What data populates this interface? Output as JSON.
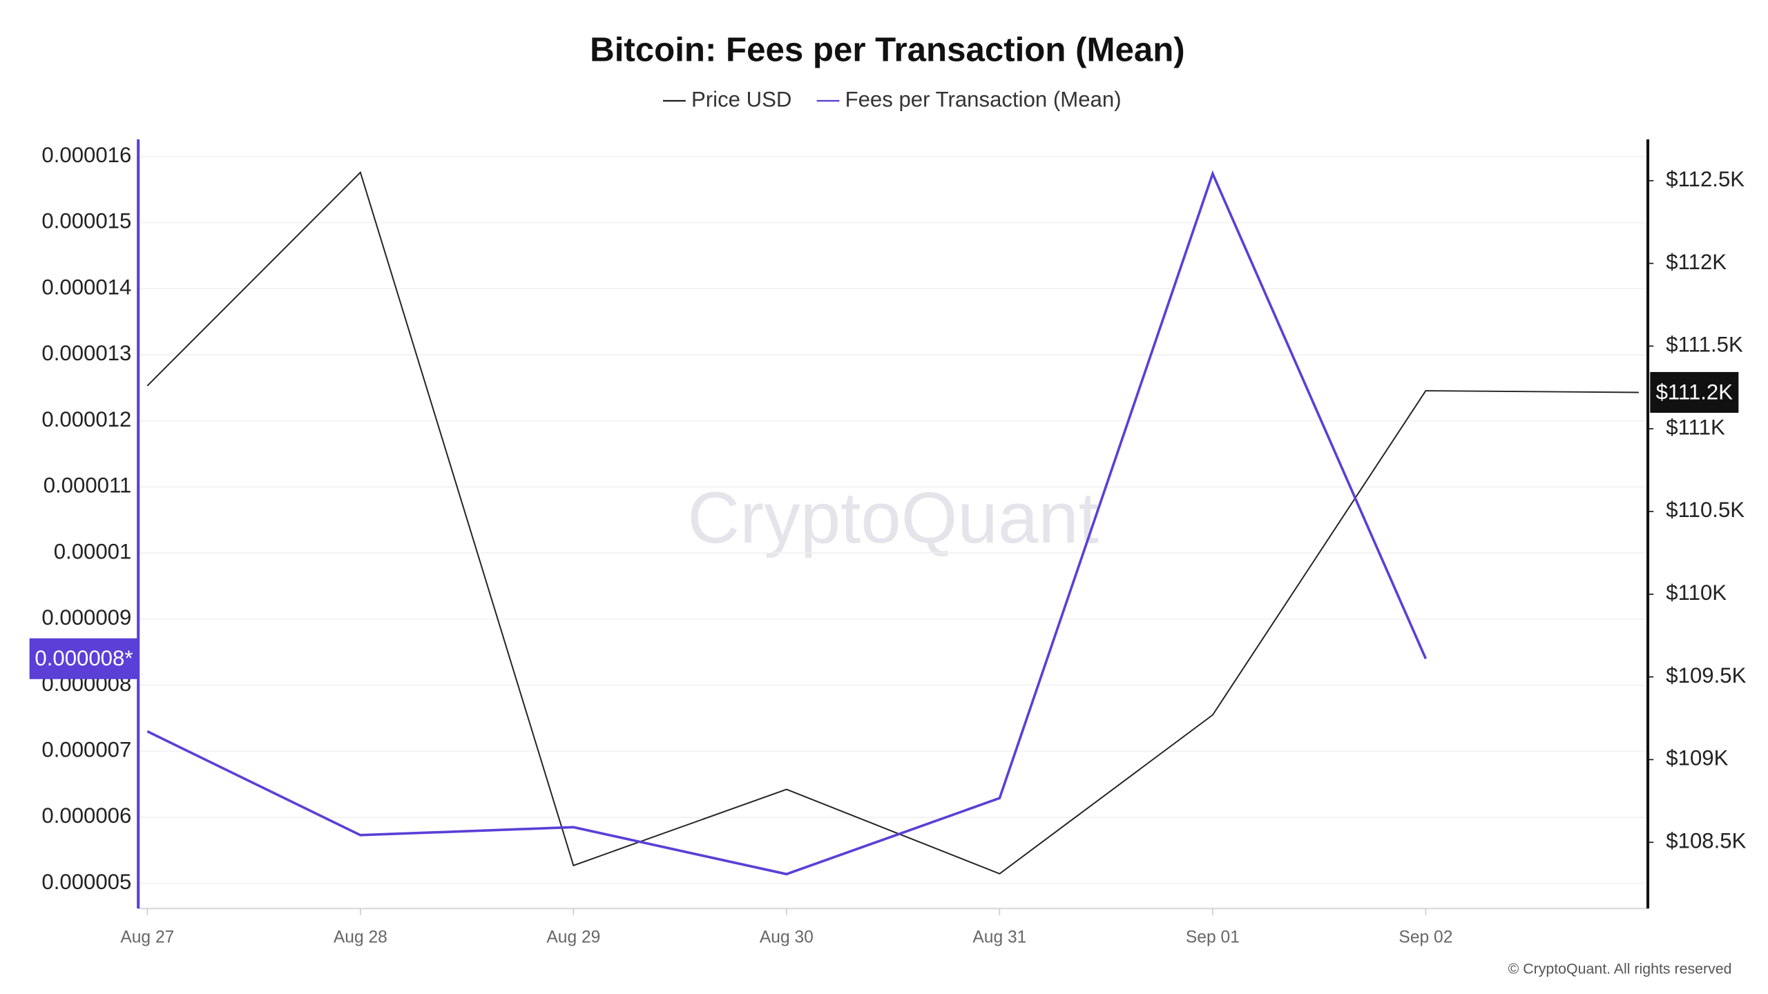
{
  "chart_data": {
    "type": "line",
    "title": "Bitcoin: Fees per Transaction (Mean)",
    "watermark": "CryptoQuant",
    "copyright": "© CryptoQuant. All rights reserved",
    "categories": [
      "Aug 27",
      "Aug 28",
      "Aug 29",
      "Aug 30",
      "Aug 31",
      "Sep 01",
      "Sep 02",
      null
    ],
    "series": [
      {
        "name": "Price USD",
        "color": "#222222",
        "axis": "y2",
        "values": [
          111260,
          112550,
          108360,
          108820,
          108310,
          109270,
          111230,
          111220
        ],
        "value_labels": [
          null,
          null,
          null,
          null,
          null,
          null,
          null,
          "$111.2K"
        ]
      },
      {
        "name": "Fees per Transaction (Mean)",
        "color": "#5b3fd6",
        "axis": "y",
        "values": [
          7.3e-06,
          5.73e-06,
          5.85e-06,
          5.14e-06,
          6.29e-06,
          1.574e-05,
          8.4e-06,
          null
        ],
        "value_labels": [
          null,
          null,
          null,
          null,
          null,
          null,
          "0.000008*",
          null
        ]
      }
    ],
    "ylim": [
      4.62e-06,
      1.626e-05
    ],
    "yticks": [
      5e-06,
      6e-06,
      7e-06,
      8e-06,
      9e-06,
      1e-05,
      1.1e-05,
      1.2e-05,
      1.3e-05,
      1.4e-05,
      1.5e-05,
      1.6e-05
    ],
    "y2lim": [
      108100,
      112750
    ],
    "y2ticks": [
      {
        "value": 108500,
        "label": "$108.5K"
      },
      {
        "value": 109000,
        "label": "$109K"
      },
      {
        "value": 109500,
        "label": "$109.5K"
      },
      {
        "value": 110000,
        "label": "$110K"
      },
      {
        "value": 110500,
        "label": "$110.5K"
      },
      {
        "value": 111000,
        "label": "$111K"
      },
      {
        "value": 111500,
        "label": "$111.5K"
      },
      {
        "value": 112000,
        "label": "$112K"
      },
      {
        "value": 112500,
        "label": "$112.5K"
      }
    ],
    "grid": true
  }
}
